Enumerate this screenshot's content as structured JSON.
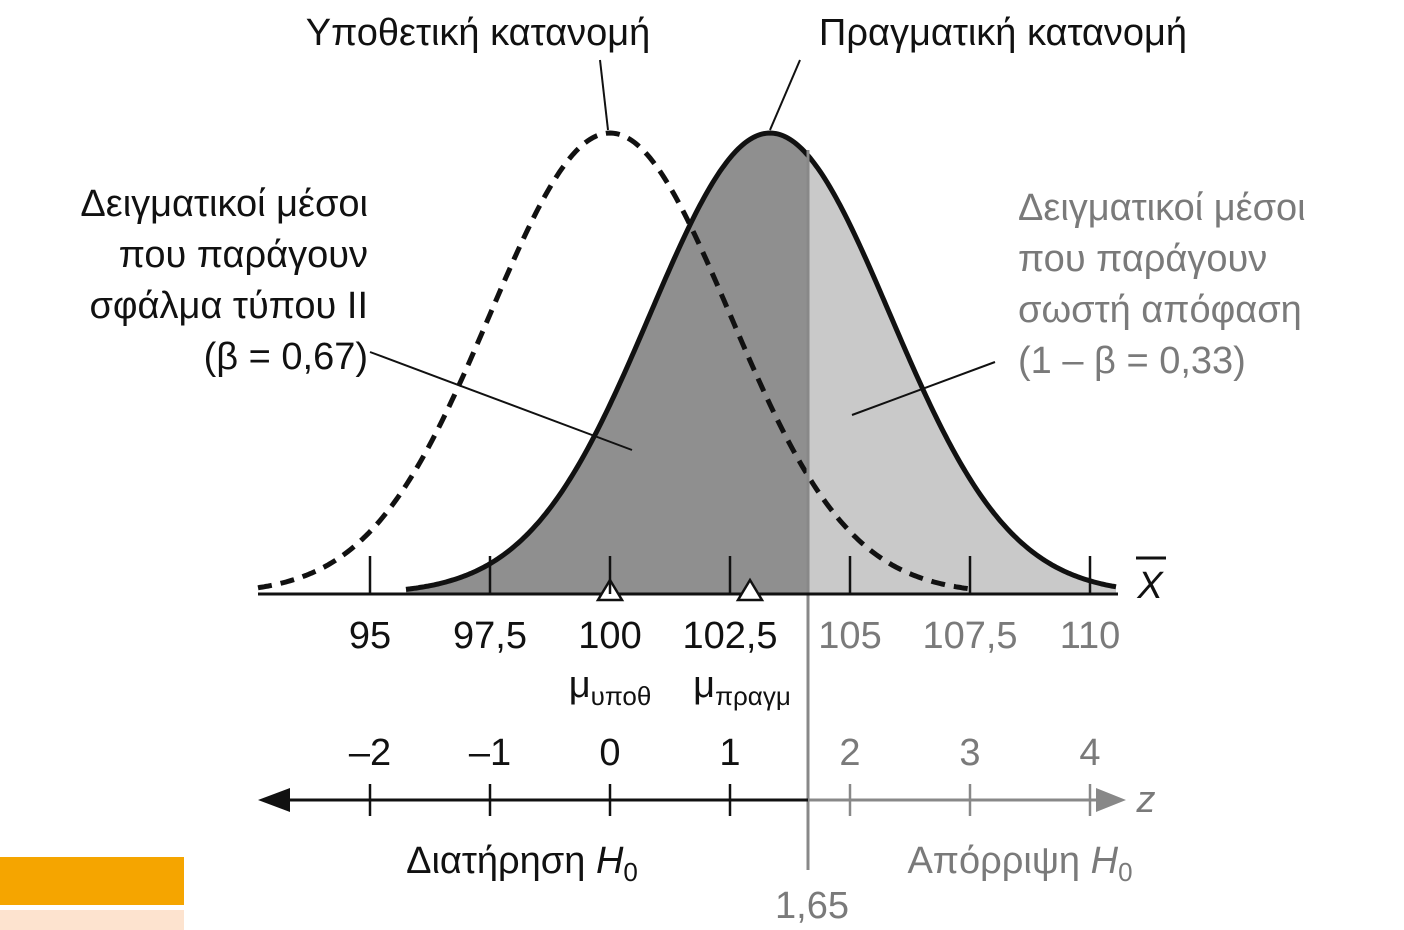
{
  "labels": {
    "hypothetical": "Υποθετική κατανομή",
    "actual": "Πραγματική κατανομή",
    "left_note": [
      "Δειγματικοί μέσοι",
      "που παράγουν",
      "σφάλμα τύπου ΙΙ",
      "(β = 0,67)"
    ],
    "right_note": [
      "Δειγματικοί μέσοι",
      "που παράγουν",
      "σωστή απόφαση",
      "(1 – β = 0,33)"
    ],
    "x_axis": "X",
    "z_axis": "z",
    "mu_hyp": {
      "symbol": "μ",
      "sub": "υποθ"
    },
    "mu_act": {
      "symbol": "μ",
      "sub": "πραγμ"
    },
    "retain": {
      "text": "Διατήρηση ",
      "var": "H",
      "sub": "0"
    },
    "reject": {
      "text": "Απόρριψη ",
      "var": "H",
      "sub": "0"
    },
    "critical": "1,65"
  },
  "x_ticks": [
    "95",
    "97,5",
    "100",
    "102,5",
    "105",
    "107,5",
    "110"
  ],
  "z_ticks": [
    "–2",
    "–1",
    "0",
    "1",
    "2",
    "3",
    "4"
  ]
}
